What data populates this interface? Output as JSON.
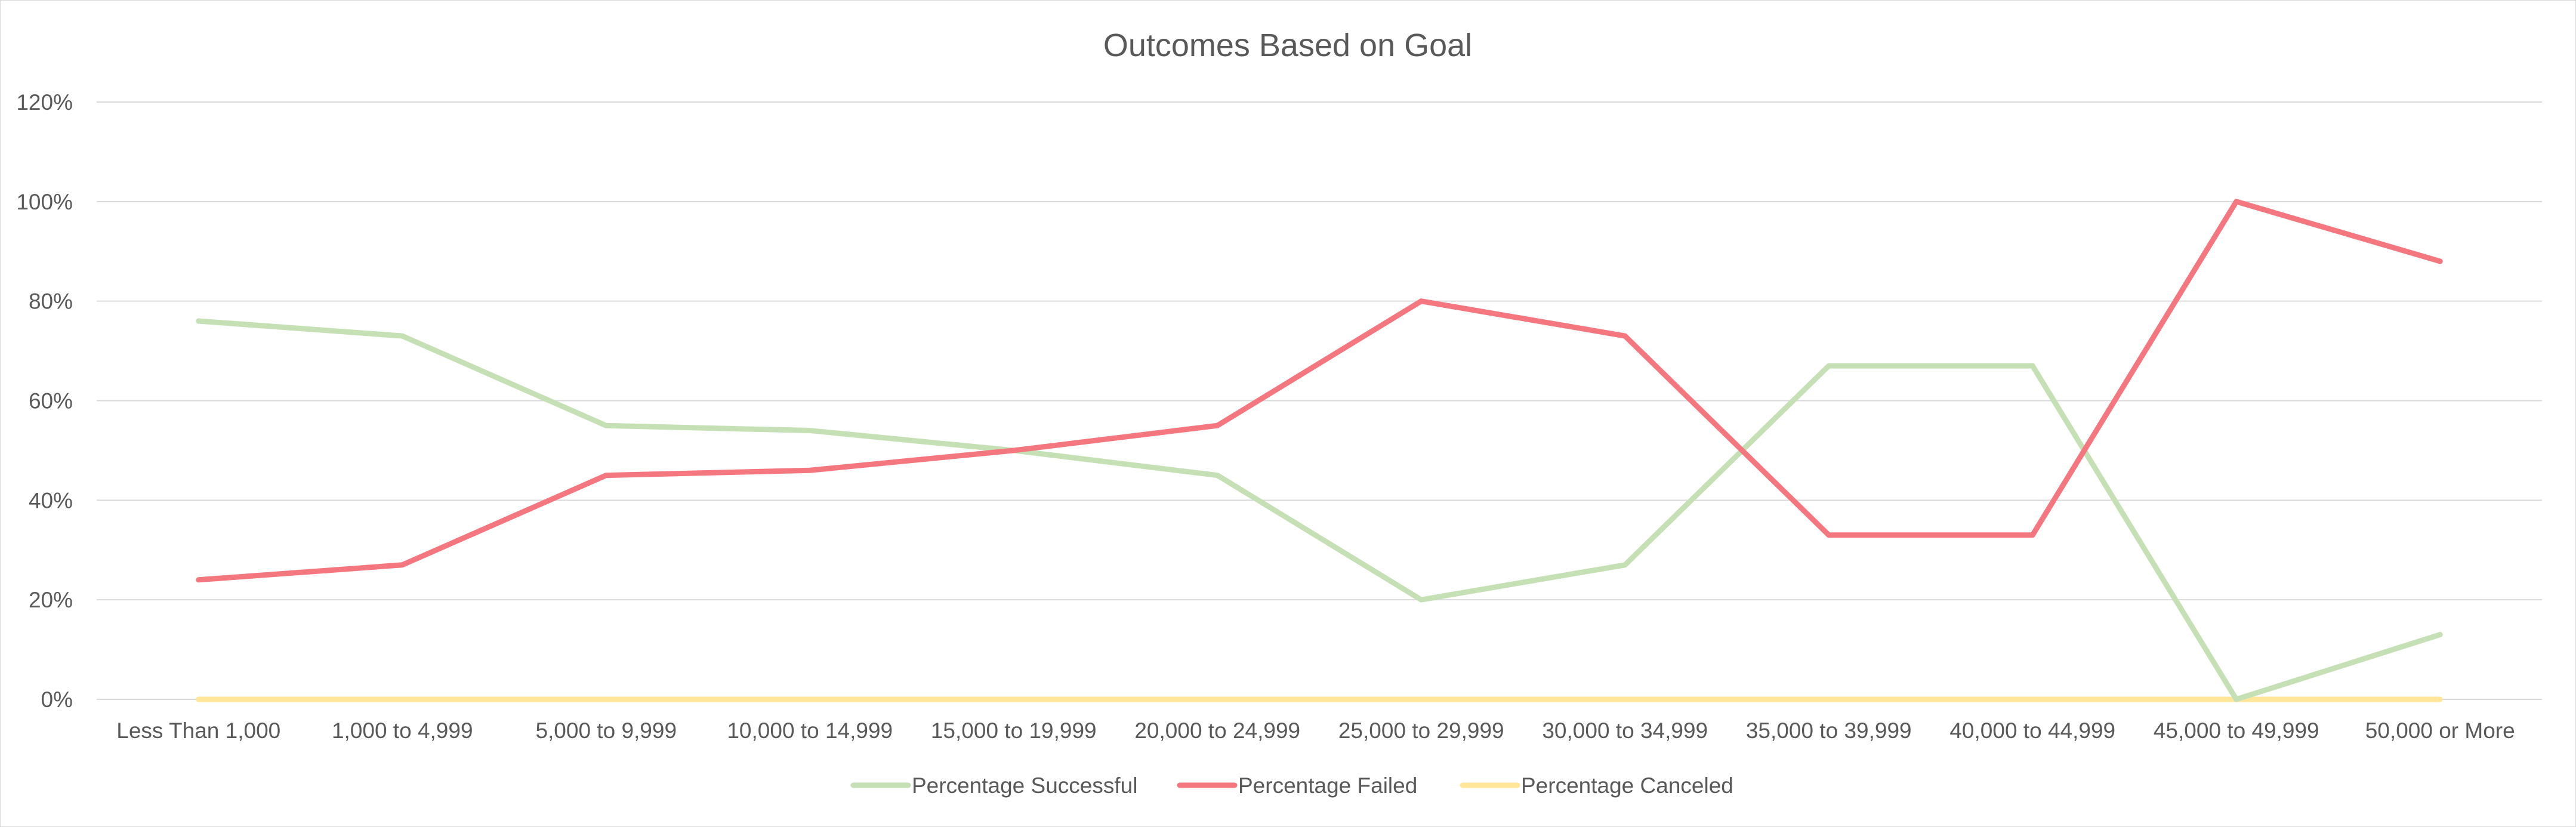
{
  "chart_data": {
    "type": "line",
    "title": "Outcomes Based on Goal",
    "xlabel": "",
    "ylabel": "",
    "categories": [
      "Less Than 1,000",
      "1,000 to 4,999",
      "5,000 to 9,999",
      "10,000 to 14,999",
      "15,000 to 19,999",
      "20,000 to 24,999",
      "25,000 to 29,999",
      "30,000 to 34,999",
      "35,000 to 39,999",
      "40,000 to 44,999",
      "45,000 to 49,999",
      "50,000 or More"
    ],
    "ylim": [
      0,
      120
    ],
    "yticks": [
      0,
      20,
      40,
      60,
      80,
      100,
      120
    ],
    "ytick_labels": [
      "0%",
      "20%",
      "40%",
      "60%",
      "80%",
      "100%",
      "120%"
    ],
    "grid": true,
    "legend_position": "bottom",
    "series": [
      {
        "name": "Percentage Successful",
        "color": "#c5e0b4",
        "values": [
          76,
          73,
          55,
          54,
          50,
          45,
          20,
          27,
          67,
          67,
          0,
          13
        ]
      },
      {
        "name": "Percentage Failed",
        "color": "#f4777f",
        "values": [
          24,
          27,
          45,
          46,
          50,
          55,
          80,
          73,
          33,
          33,
          100,
          88
        ]
      },
      {
        "name": "Percentage Canceled",
        "color": "#ffe699",
        "values": [
          0,
          0,
          0,
          0,
          0,
          0,
          0,
          0,
          0,
          0,
          0,
          0
        ]
      }
    ]
  }
}
